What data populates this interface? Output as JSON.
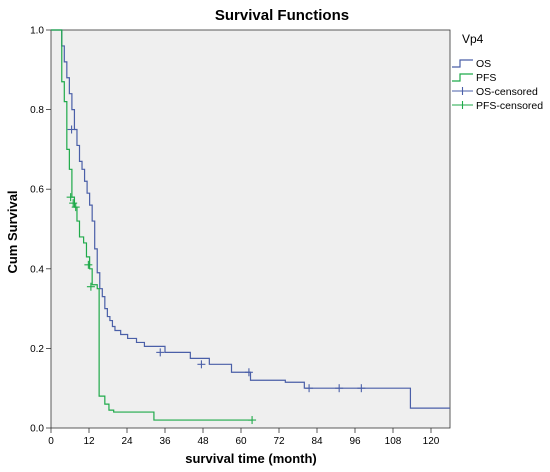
{
  "chart_data": {
    "type": "line",
    "chart_style": "survival step curve (Kaplan-Meier)",
    "title": "Survival Functions",
    "xlabel": "survival time (month)",
    "ylabel": "Cum Survival",
    "xlim": [
      0,
      126
    ],
    "ylim": [
      0,
      1.0
    ],
    "xticks": [
      0,
      12,
      24,
      36,
      48,
      60,
      72,
      84,
      96,
      108,
      120
    ],
    "yticks": [
      0.0,
      0.2,
      0.4,
      0.6,
      0.8,
      1.0
    ],
    "xtick_labels": [
      "0",
      "12",
      "24",
      "36",
      "48",
      "60",
      "72",
      "84",
      "96",
      "108",
      "120"
    ],
    "ytick_labels": [
      "0.0",
      "0.2",
      "0.4",
      "0.6",
      "0.8",
      "1.0"
    ],
    "grid": false,
    "plot_background": "#efefef",
    "legend": {
      "title": "Vp4",
      "placement": "right",
      "entries": [
        "OS",
        "PFS",
        "OS-censored",
        "PFS-censored"
      ]
    },
    "series": [
      {
        "name": "OS",
        "color": "#4a5fa8",
        "x": [
          0,
          3.4,
          4.2,
          5,
          5.8,
          6.6,
          7.4,
          8.2,
          9,
          9.8,
          10.6,
          11.4,
          12.2,
          13,
          13.8,
          14.6,
          15.4,
          16.2,
          17,
          17.8,
          18.6,
          19.4,
          20.2,
          22,
          24.2,
          27,
          29.5,
          36,
          44,
          50,
          57,
          63,
          74,
          80,
          113.5,
          126
        ],
        "y": [
          1.0,
          0.96,
          0.92,
          0.88,
          0.84,
          0.8,
          0.75,
          0.71,
          0.67,
          0.65,
          0.62,
          0.59,
          0.56,
          0.52,
          0.45,
          0.39,
          0.35,
          0.33,
          0.3,
          0.28,
          0.27,
          0.255,
          0.245,
          0.235,
          0.225,
          0.215,
          0.205,
          0.19,
          0.175,
          0.16,
          0.14,
          0.12,
          0.115,
          0.1,
          0.05,
          0.05
        ]
      },
      {
        "name": "PFS",
        "color": "#1faa4a",
        "x": [
          0,
          3.4,
          4.2,
          5,
          5.8,
          6.6,
          7.4,
          8.2,
          9,
          10.3,
          11.2,
          12.2,
          13,
          14.6,
          15.2,
          17,
          18.3,
          19.8,
          32.5,
          63.5
        ],
        "y": [
          1.0,
          0.87,
          0.82,
          0.7,
          0.65,
          0.58,
          0.555,
          0.52,
          0.48,
          0.465,
          0.43,
          0.4,
          0.36,
          0.35,
          0.08,
          0.06,
          0.045,
          0.04,
          0.02,
          0.02
        ]
      }
    ],
    "censored": [
      {
        "name": "OS-censored",
        "color": "#4a5fa8",
        "x": [
          6.5,
          34.5,
          47.5,
          62.5,
          81.5,
          91,
          98
        ],
        "y": [
          0.75,
          0.19,
          0.16,
          0.14,
          0.1,
          0.1,
          0.1
        ]
      },
      {
        "name": "PFS-censored",
        "color": "#1faa4a",
        "x": [
          6.2,
          7.0,
          7.8,
          11.8,
          12.6,
          63.5
        ],
        "y": [
          0.58,
          0.565,
          0.555,
          0.41,
          0.355,
          0.02
        ]
      }
    ]
  }
}
